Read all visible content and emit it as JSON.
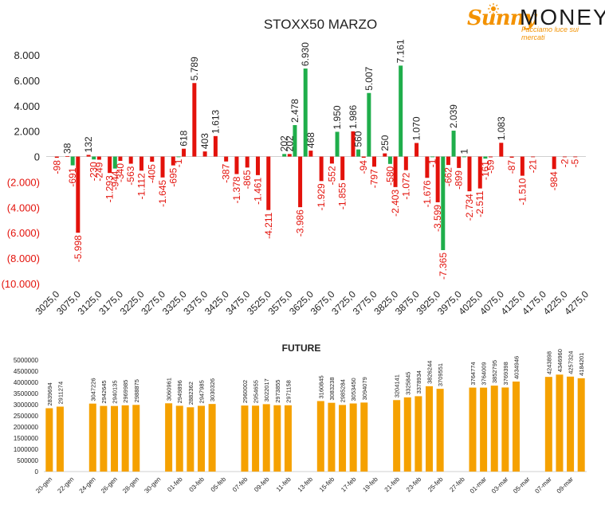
{
  "logo": {
    "word1": "Sunny",
    "word2": "MONEY",
    "tagline": "Facciamo luce sui mercati"
  },
  "colors": {
    "positive": "#1fae4b",
    "negative": "#e3120b",
    "future_bar": "#f5a100",
    "axis": "#cfcfcf",
    "text": "#222222"
  },
  "chart_data": [
    {
      "type": "bar",
      "title": "STOXX50 MARZO",
      "category_labels": [
        "3025,0",
        "3075,0",
        "3125,0",
        "3175,0",
        "3225,0",
        "3275,0",
        "3325,0",
        "3375,0",
        "3425,0",
        "3475,0",
        "3525,0",
        "3575,0",
        "3625,0",
        "3675,0",
        "3725,0",
        "3775,0",
        "3825,0",
        "3875,0",
        "3925,0",
        "3975,0",
        "4025,0",
        "4075,0",
        "4125,0",
        "4175,0",
        "4225,0",
        "4275,0"
      ],
      "strike_start": 3025,
      "strike_step": 25,
      "ylim": [
        -10000,
        8000
      ],
      "yticks": [
        8000,
        6000,
        4000,
        2000,
        0,
        -2000,
        -4000,
        -6000,
        -8000,
        -10000
      ],
      "ytick_labels": [
        "8.000",
        "6.000",
        "4.000",
        "2.000",
        "0",
        "(2.000)",
        "(4.000)",
        "(6.000)",
        "(8.000)",
        "(10.000)"
      ],
      "series": [
        {
          "color": "red",
          "values": [
            -98,
            38,
            -5998,
            132,
            -249,
            -1293,
            -340,
            -563,
            -1112,
            -405,
            -1645,
            -695,
            618,
            5789,
            403,
            1613,
            -387,
            -1378,
            -865,
            -1461,
            -4211,
            202,
            -3986,
            468,
            -1929,
            -552,
            -1855,
            1986,
            -94,
            -797,
            250,
            -2403,
            -1072,
            1070,
            -1676,
            -3599,
            -662,
            -899,
            -2734,
            -2511,
            -59,
            1083,
            -87,
            -1510,
            -21,
            -984,
            -2,
            -5
          ],
          "labels": [
            "-98",
            "38",
            "-5.998",
            "132",
            "-249",
            "-1.293",
            "-340",
            "-563",
            "-1.112",
            "-405",
            "-1.645",
            "-695",
            "618",
            "5.789",
            "403",
            "1.613",
            "-387",
            "-1.378",
            "-865",
            "-1.461",
            "-4.211",
            "202",
            "-3.986",
            "468",
            "-1.929",
            "-552",
            "-1.855",
            "1.986",
            "-94",
            "-797",
            "250",
            "-2.403",
            "-1.072",
            "1.070",
            "-1.676",
            "-3.599",
            "-662",
            "-899",
            "-2.734",
            "-2.511",
            "-59",
            "1.083",
            "-87",
            "-1.510",
            "-21",
            "-984",
            "-2",
            "-5"
          ],
          "positions": [
            1,
            2,
            3,
            4,
            5,
            6,
            7,
            8,
            9,
            10,
            11,
            12,
            13,
            14,
            15,
            16,
            17,
            18,
            19,
            20,
            21,
            23,
            24,
            25,
            26,
            27,
            28,
            29,
            30,
            31,
            32,
            33,
            34,
            35,
            36,
            37,
            38,
            39,
            40,
            41,
            42,
            43,
            44,
            45,
            46,
            48,
            49,
            50
          ]
        },
        {
          "color": "green",
          "values": [
            -691,
            -230,
            -944,
            -1,
            202,
            2478,
            6930,
            1950,
            560,
            5007,
            -580,
            7161,
            -1,
            -7365,
            2039,
            1,
            -161
          ],
          "labels": [
            "-691",
            "-230",
            "-944",
            "-1",
            "202",
            "2.478",
            "6.930",
            "1.950",
            "560",
            "5.007",
            "-580",
            "7.161",
            "-1",
            "-7.365",
            "2.039",
            "1",
            "-161"
          ],
          "positions": [
            2.5,
            4.5,
            6.5,
            12.5,
            22.5,
            23.5,
            24.5,
            27.5,
            29.5,
            30.5,
            32.5,
            33.5,
            36.5,
            37.5,
            38.5,
            39.5,
            41.5
          ]
        }
      ]
    },
    {
      "type": "bar",
      "title": "FUTURE",
      "ylim": [
        0,
        5000000
      ],
      "ytick_labels": [
        "0",
        "500000",
        "1000000",
        "1500000",
        "2000000",
        "2500000",
        "3000000",
        "3500000",
        "4000000",
        "4500000",
        "5000000"
      ],
      "x_tick_labels": [
        "20-gen",
        "22-gen",
        "24-gen",
        "26-gen",
        "28-gen",
        "30-gen",
        "01-feb",
        "03-feb",
        "05-feb",
        "07-feb",
        "09-feb",
        "11-feb",
        "13-feb",
        "15-feb",
        "17-feb",
        "19-feb",
        "21-feb",
        "23-feb",
        "25-feb",
        "27-feb",
        "01-mar",
        "03-mar",
        "05-mar",
        "07-mar",
        "09-mar"
      ],
      "x_tick_slots": [
        0,
        2,
        4,
        6,
        8,
        10,
        12,
        14,
        16,
        18,
        20,
        22,
        24,
        26,
        28,
        30,
        32,
        34,
        36,
        38,
        40,
        42,
        44,
        46,
        48
      ],
      "values": [
        2839694,
        2911274,
        3047226,
        2942645,
        2940135,
        2969985,
        2988875,
        3060961,
        2949896,
        2882362,
        2947985,
        3030326,
        2960002,
        2954655,
        3022017,
        2973855,
        2971158,
        3160845,
        3083238,
        2985284,
        3053450,
        3094079,
        3204141,
        3325845,
        3378934,
        3826244,
        3709551,
        3764774,
        3764009,
        3852795,
        3769398,
        4034946,
        4243898,
        4346960,
        4257324,
        4184201
      ],
      "slots": [
        0,
        1,
        4,
        5,
        6,
        7,
        8,
        11,
        12,
        13,
        14,
        15,
        18,
        19,
        20,
        21,
        22,
        25,
        26,
        27,
        28,
        29,
        32,
        33,
        34,
        35,
        36,
        39,
        40,
        41,
        42,
        43,
        46,
        47,
        48,
        49
      ]
    }
  ]
}
